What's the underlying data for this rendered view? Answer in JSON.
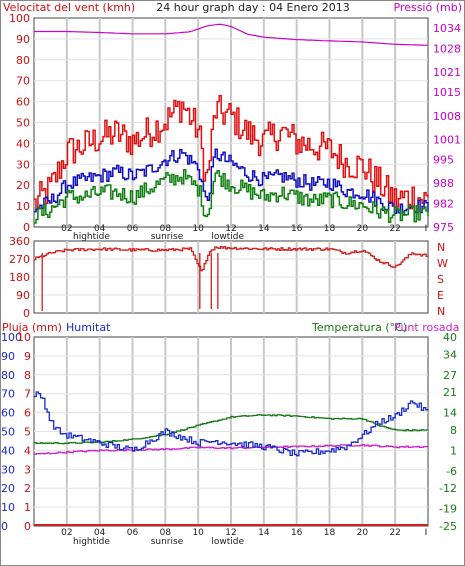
{
  "header": {
    "wind_label": "Velocitat del vent (kmh)",
    "title": "24 hour graph day : 04 Enero 2013",
    "pressure_label": "Pressió (mb)"
  },
  "panel2": {
    "dir_letters": [
      "N",
      "W",
      "S",
      "E",
      "N"
    ]
  },
  "panel3": {
    "rain_label": "Pluja (mm)",
    "humidity_label": "Humitat",
    "temp_label": "Temperatura (°C)",
    "dewpoint_label": "Punt rosada"
  },
  "axis": {
    "hour_ticks": [
      "02",
      "04",
      "06",
      "08",
      "10",
      "12",
      "14",
      "16",
      "18",
      "20",
      "22",
      "I"
    ],
    "events": [
      {
        "label": "hightide",
        "hour": 3.5
      },
      {
        "label": "sunrise",
        "hour": 8.1
      },
      {
        "label": "lowtide",
        "hour": 11.8
      }
    ]
  },
  "colors": {
    "wind_gust": "#e01010",
    "wind_avg": "#1010c0",
    "wind_min": "#108010",
    "pressure": "#cc00cc",
    "direction": "#d02020",
    "humidity": "#1a2acc",
    "temperature": "#1a7a1a",
    "dewpoint": "#cc22cc",
    "rain": "#d02020",
    "grid": "#c8c8c8",
    "left_axis": "#d01010",
    "right_axis_pressure": "#cc00cc",
    "right_axis_temp": "#1a7a1a",
    "humidity_text": "#1a2acc"
  },
  "chart_data": [
    {
      "type": "line",
      "title": "24 hour graph day : 04 Enero 2013",
      "xlabel": "",
      "ylabel": "Velocitat del vent (kmh)",
      "y2label": "Pressió (mb)",
      "x_hours": [
        0,
        24
      ],
      "ylim": [
        0,
        100
      ],
      "y_ticks": [
        0,
        10,
        20,
        30,
        40,
        50,
        60,
        70,
        80,
        90,
        100
      ],
      "y2lim": [
        975,
        1037
      ],
      "y2_ticks": [
        975,
        982,
        988,
        995,
        1001,
        1008,
        1015,
        1021,
        1028,
        1034
      ],
      "series": [
        {
          "name": "",
          "role": "gust",
          "x": [
            0,
            1,
            2,
            3,
            4,
            5,
            6,
            7,
            8,
            9,
            10,
            10.5,
            11,
            12,
            13,
            14,
            15,
            16,
            17,
            18,
            19,
            20,
            21,
            22,
            23,
            24
          ],
          "values": [
            10,
            18,
            35,
            38,
            42,
            44,
            40,
            45,
            50,
            58,
            45,
            20,
            55,
            52,
            44,
            40,
            45,
            40,
            38,
            36,
            30,
            28,
            20,
            12,
            14,
            12
          ]
        },
        {
          "name": "",
          "role": "average",
          "x": [
            0,
            1,
            2,
            3,
            4,
            5,
            6,
            7,
            8,
            9,
            10,
            10.5,
            11,
            12,
            13,
            14,
            15,
            16,
            17,
            18,
            19,
            20,
            21,
            22,
            23,
            24
          ],
          "values": [
            8,
            12,
            20,
            22,
            24,
            26,
            24,
            27,
            32,
            35,
            28,
            10,
            35,
            30,
            25,
            22,
            24,
            22,
            20,
            21,
            17,
            16,
            12,
            8,
            10,
            9
          ]
        },
        {
          "name": "",
          "role": "minimum",
          "x": [
            0,
            1,
            2,
            3,
            4,
            5,
            6,
            7,
            8,
            9,
            10,
            10.5,
            11,
            12,
            13,
            14,
            15,
            16,
            17,
            18,
            19,
            20,
            21,
            22,
            23,
            24
          ],
          "values": [
            5,
            8,
            14,
            14,
            16,
            16,
            14,
            18,
            22,
            24,
            18,
            4,
            25,
            20,
            17,
            14,
            16,
            14,
            12,
            13,
            11,
            10,
            7,
            5,
            6,
            6
          ]
        },
        {
          "name": "",
          "role": "pressure",
          "axis": "right",
          "x": [
            0,
            2,
            4,
            6,
            8,
            9.5,
            10.5,
            11.3,
            12,
            13,
            14,
            16,
            18,
            20,
            22,
            24
          ],
          "values": [
            1033,
            1033,
            1032.7,
            1032.3,
            1032.3,
            1032.9,
            1034.6,
            1035.2,
            1034.5,
            1032.2,
            1031.3,
            1030.6,
            1030.2,
            1029.9,
            1029.2,
            1028.9
          ]
        }
      ]
    },
    {
      "type": "line",
      "title": "",
      "ylabel": "",
      "x_hours": [
        0,
        24
      ],
      "ylim": [
        0,
        360
      ],
      "y_ticks": [
        0,
        90,
        180,
        270,
        360
      ],
      "series": [
        {
          "name": "",
          "role": "wind_direction",
          "x": [
            0,
            1,
            2,
            4,
            6,
            8,
            9.5,
            10.2,
            10.6,
            11,
            12,
            14,
            16,
            18,
            19,
            20,
            21,
            22,
            23,
            24
          ],
          "values": [
            270,
            300,
            315,
            320,
            315,
            315,
            320,
            200,
            300,
            330,
            325,
            320,
            320,
            320,
            300,
            315,
            260,
            230,
            300,
            285
          ]
        }
      ]
    },
    {
      "type": "line",
      "title": "",
      "ylabel": "Pluja (mm)",
      "x_hours": [
        0,
        24
      ],
      "ylim": [
        0,
        100
      ],
      "y_ticks": [
        0,
        10,
        20,
        30,
        40,
        50,
        60,
        70,
        80,
        90,
        100
      ],
      "y_ticks_rain": [
        0,
        1,
        2,
        3,
        4,
        5,
        6,
        7,
        8,
        9,
        10
      ],
      "y2lim": [
        -25,
        40
      ],
      "y2_ticks": [
        -25,
        -19,
        -12,
        -6,
        1,
        8,
        14,
        21,
        27,
        34,
        40
      ],
      "series": [
        {
          "name": "Humitat",
          "role": "humidity",
          "x": [
            0,
            0.5,
            1,
            1.5,
            2,
            3,
            4,
            6,
            8,
            10,
            11,
            12,
            14,
            16,
            18,
            19,
            20,
            21,
            22,
            23,
            24
          ],
          "values": [
            70,
            68,
            55,
            50,
            48,
            46,
            44,
            40,
            50,
            44,
            45,
            44,
            42,
            38,
            40,
            42,
            48,
            55,
            58,
            66,
            60
          ]
        },
        {
          "name": "Temperatura (°C)",
          "role": "temperature",
          "axis": "right",
          "x": [
            0,
            2,
            4,
            6,
            8,
            10,
            12,
            14,
            16,
            18,
            20,
            21,
            22,
            23,
            24
          ],
          "values": [
            3.5,
            3.5,
            3.8,
            4.8,
            6.5,
            9.6,
            12.5,
            13.2,
            12.8,
            11.9,
            11.9,
            9.5,
            8.0,
            7.9,
            8.0
          ]
        },
        {
          "name": "Punt rosada",
          "role": "dewpoint",
          "axis": "right",
          "x": [
            0,
            2,
            4,
            6,
            8,
            10,
            12,
            14,
            16,
            18,
            20,
            22,
            24
          ],
          "values": [
            -0.3,
            0.4,
            1.0,
            1.2,
            1.4,
            2.0,
            1.8,
            2.1,
            2.3,
            2.6,
            2.8,
            2.2,
            2.3
          ]
        },
        {
          "name": "Pluja (mm)",
          "role": "rain",
          "x": [
            0,
            24
          ],
          "values": [
            0,
            0
          ]
        }
      ]
    }
  ]
}
